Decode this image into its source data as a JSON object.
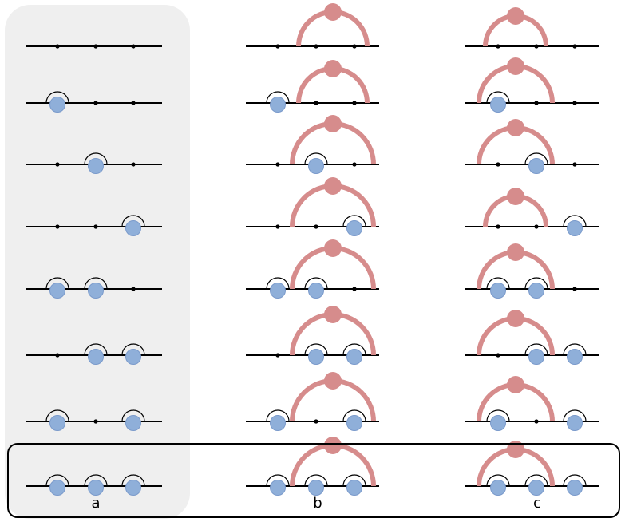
{
  "colors": {
    "panel_bg": "#efefef",
    "line": "#000000",
    "node": "#8fafd9",
    "node_stroke": "#7a9acb",
    "big": "#d68c8c",
    "frame": "#000000"
  },
  "icons": {
    "small_node": "blue-circle-with-arc",
    "big_node": "red-circle-with-arc",
    "site": "black-dot"
  },
  "columns": [
    {
      "label": "a",
      "rows": [
        {
          "occupied": [
            0,
            0,
            0
          ]
        },
        {
          "occupied": [
            1,
            0,
            0
          ]
        },
        {
          "occupied": [
            0,
            1,
            0
          ]
        },
        {
          "occupied": [
            0,
            0,
            1
          ]
        },
        {
          "occupied": [
            1,
            1,
            0
          ]
        },
        {
          "occupied": [
            0,
            1,
            1
          ]
        },
        {
          "occupied": [
            1,
            0,
            1
          ]
        },
        {
          "occupied": [
            1,
            1,
            1
          ]
        }
      ]
    },
    {
      "label": "b",
      "rows": [
        {
          "occupied": [
            0,
            0,
            0
          ],
          "big_span": [
            1,
            3
          ]
        },
        {
          "occupied": [
            1,
            0,
            0
          ],
          "big_span": [
            1,
            3
          ]
        },
        {
          "occupied": [
            0,
            1,
            0
          ],
          "big_span": [
            1,
            3
          ]
        },
        {
          "occupied": [
            0,
            0,
            1
          ],
          "big_span": [
            1,
            3
          ]
        },
        {
          "occupied": [
            1,
            1,
            0
          ],
          "big_span": [
            1,
            3
          ]
        },
        {
          "occupied": [
            0,
            1,
            1
          ],
          "big_span": [
            1,
            3
          ]
        },
        {
          "occupied": [
            1,
            0,
            1
          ],
          "big_span": [
            1,
            3
          ]
        },
        {
          "occupied": [
            1,
            1,
            1
          ],
          "big_span": [
            1,
            3
          ]
        }
      ]
    },
    {
      "label": "c",
      "rows": [
        {
          "occupied": [
            0,
            0,
            0
          ],
          "big_span": [
            0,
            2
          ]
        },
        {
          "occupied": [
            1,
            0,
            0
          ],
          "big_span": [
            0,
            2
          ]
        },
        {
          "occupied": [
            0,
            1,
            0
          ],
          "big_span": [
            0,
            2
          ]
        },
        {
          "occupied": [
            0,
            0,
            1
          ],
          "big_span": [
            0,
            2
          ]
        },
        {
          "occupied": [
            1,
            1,
            0
          ],
          "big_span": [
            0,
            2
          ]
        },
        {
          "occupied": [
            0,
            1,
            1
          ],
          "big_span": [
            0,
            2
          ]
        },
        {
          "occupied": [
            1,
            0,
            1
          ],
          "big_span": [
            0,
            2
          ]
        },
        {
          "occupied": [
            1,
            1,
            1
          ],
          "big_span": [
            0,
            2
          ]
        }
      ]
    }
  ]
}
